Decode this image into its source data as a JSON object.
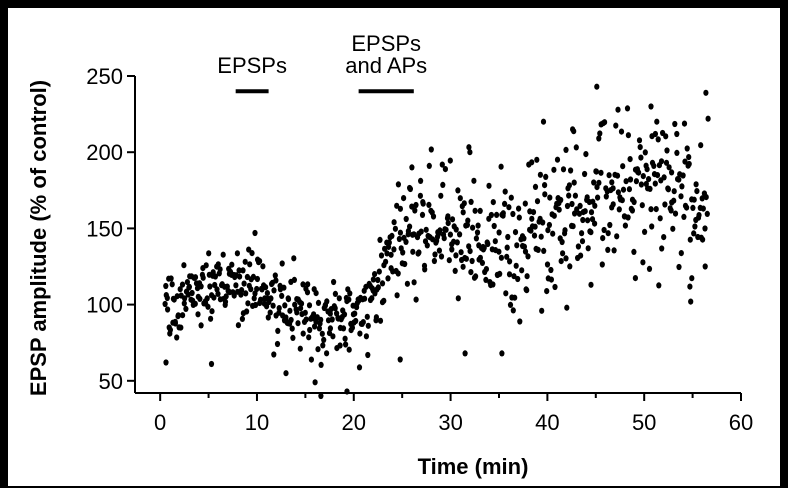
{
  "chart_data": {
    "type": "scatter",
    "title": "",
    "xlabel": "Time (min)",
    "ylabel": "EPSP amplitude (% of control)",
    "xlim": [
      -2.6,
      60
    ],
    "ylim": [
      42,
      250
    ],
    "xticks": [
      0,
      10,
      20,
      30,
      40,
      50,
      60
    ],
    "yticks": [
      50,
      100,
      150,
      200,
      250
    ],
    "grid": false,
    "legend": "none",
    "marker_color": "#000000",
    "annotations": [
      {
        "label": "EPSPs",
        "x_start": 7.8,
        "x_end": 11.2,
        "y": 240
      },
      {
        "label_lines": [
          "EPSPs",
          "and APs"
        ],
        "x_start": 20.5,
        "x_end": 26.2,
        "y": 240
      }
    ],
    "trend": [
      {
        "x": 0.5,
        "y": 95,
        "sd": 12
      },
      {
        "x": 3,
        "y": 104,
        "sd": 13
      },
      {
        "x": 6,
        "y": 113,
        "sd": 13
      },
      {
        "x": 9,
        "y": 118,
        "sd": 12
      },
      {
        "x": 12,
        "y": 103,
        "sd": 12
      },
      {
        "x": 15,
        "y": 93,
        "sd": 13
      },
      {
        "x": 18,
        "y": 86,
        "sd": 14
      },
      {
        "x": 20,
        "y": 90,
        "sd": 13
      },
      {
        "x": 22,
        "y": 108,
        "sd": 14
      },
      {
        "x": 24,
        "y": 130,
        "sd": 18
      },
      {
        "x": 27,
        "y": 150,
        "sd": 20
      },
      {
        "x": 30,
        "y": 148,
        "sd": 22
      },
      {
        "x": 33,
        "y": 140,
        "sd": 22
      },
      {
        "x": 36,
        "y": 138,
        "sd": 22
      },
      {
        "x": 39,
        "y": 150,
        "sd": 24
      },
      {
        "x": 42,
        "y": 158,
        "sd": 25
      },
      {
        "x": 45,
        "y": 168,
        "sd": 24
      },
      {
        "x": 48,
        "y": 176,
        "sd": 24
      },
      {
        "x": 51,
        "y": 170,
        "sd": 24
      },
      {
        "x": 54,
        "y": 172,
        "sd": 24
      },
      {
        "x": 56.5,
        "y": 165,
        "sd": 25
      }
    ],
    "n_points": 760,
    "outliers": [
      {
        "x": 0.6,
        "y": 62
      },
      {
        "x": 5.3,
        "y": 61
      },
      {
        "x": 9.8,
        "y": 147
      },
      {
        "x": 13.0,
        "y": 55
      },
      {
        "x": 16.0,
        "y": 49
      },
      {
        "x": 16.6,
        "y": 40
      },
      {
        "x": 19.3,
        "y": 43
      },
      {
        "x": 24.8,
        "y": 64
      },
      {
        "x": 26.0,
        "y": 190
      },
      {
        "x": 27.8,
        "y": 191
      },
      {
        "x": 32.0,
        "y": 200
      },
      {
        "x": 31.5,
        "y": 68
      },
      {
        "x": 35.3,
        "y": 68
      },
      {
        "x": 39.6,
        "y": 220
      },
      {
        "x": 42.6,
        "y": 215
      },
      {
        "x": 45.1,
        "y": 243
      },
      {
        "x": 50.7,
        "y": 230
      },
      {
        "x": 51.3,
        "y": 220
      },
      {
        "x": 54.8,
        "y": 102
      },
      {
        "x": 56.6,
        "y": 222
      },
      {
        "x": 56.3,
        "y": 125
      },
      {
        "x": 37.8,
        "y": 110
      },
      {
        "x": 42.0,
        "y": 98
      },
      {
        "x": 44.5,
        "y": 113
      }
    ]
  }
}
